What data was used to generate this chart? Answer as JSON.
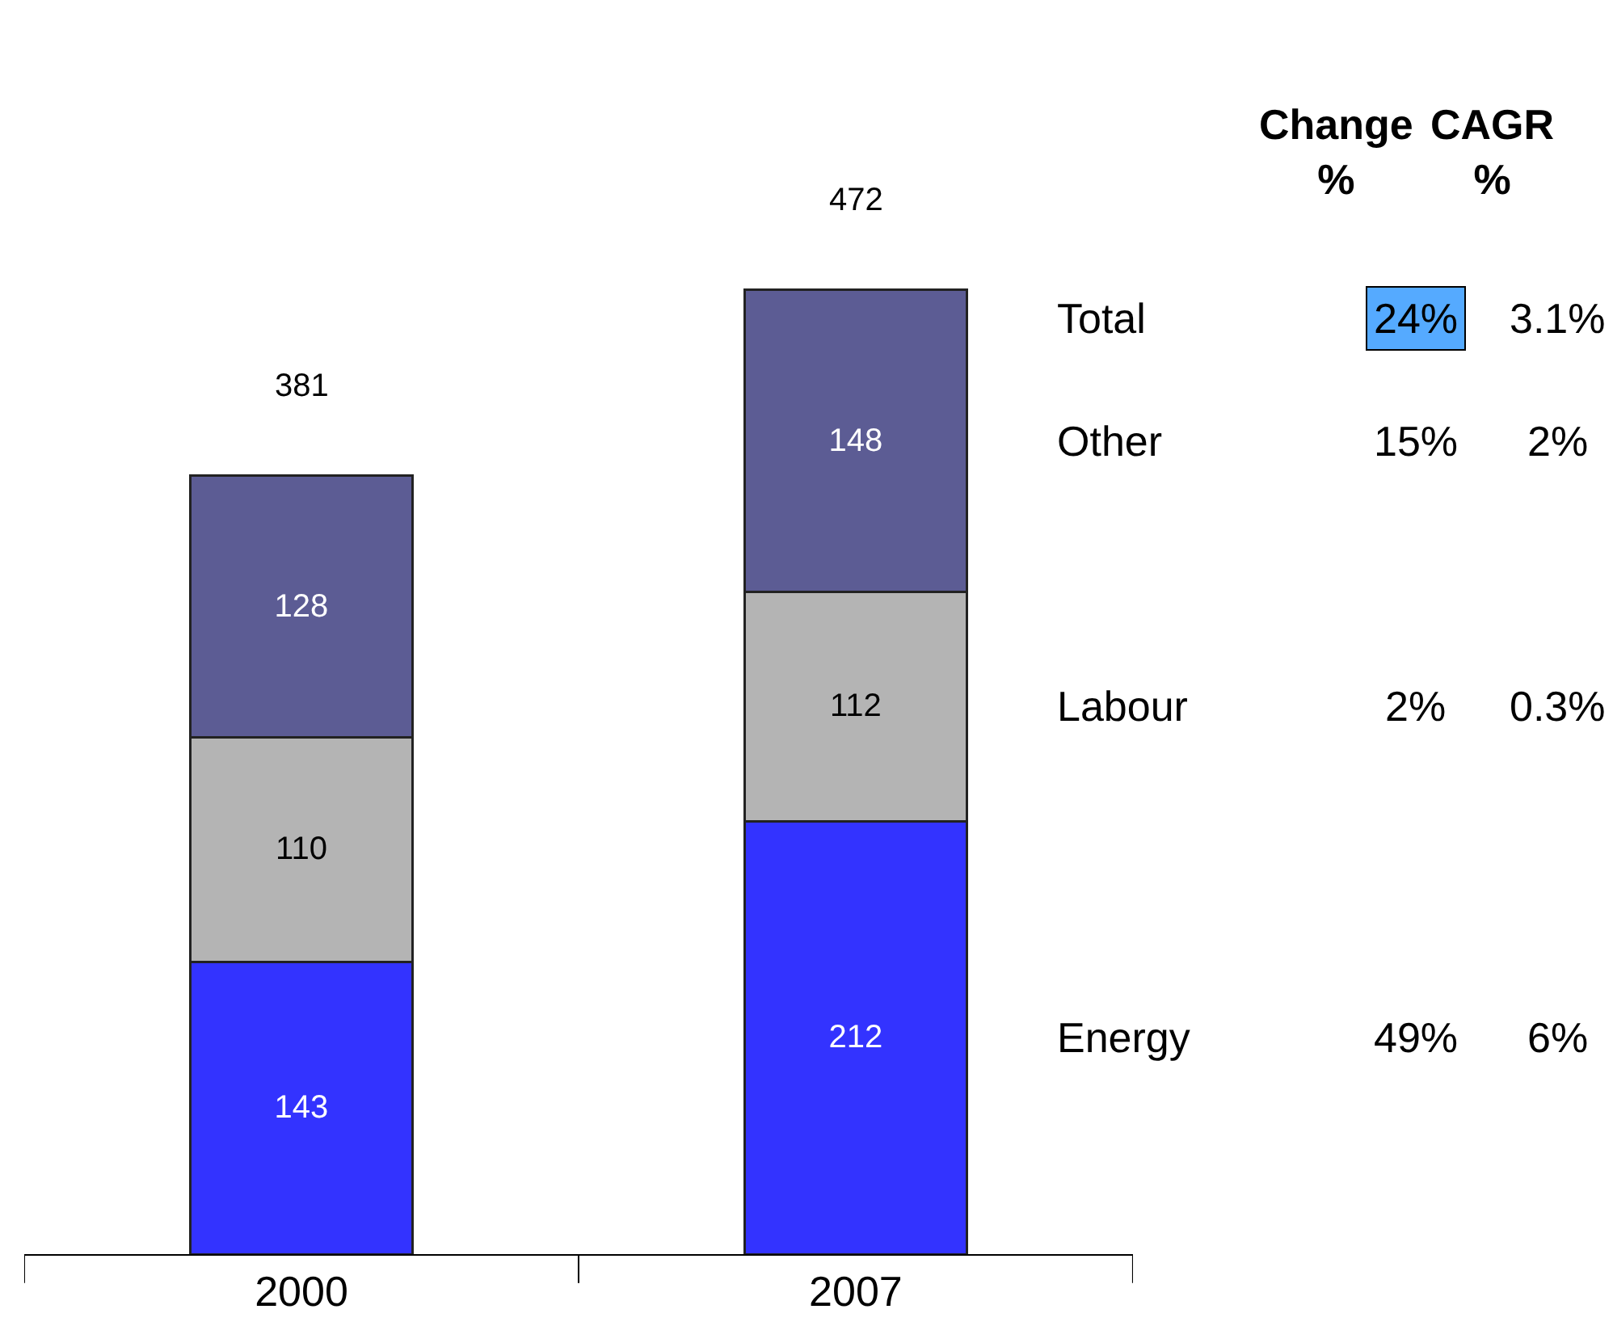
{
  "chart_data": {
    "type": "bar",
    "stacked": true,
    "categories": [
      "2000",
      "2007"
    ],
    "series": [
      {
        "name": "Energy",
        "color": "#3333ff",
        "values": [
          143,
          212
        ]
      },
      {
        "name": "Labour",
        "color": "#b4b4b4",
        "values": [
          110,
          112
        ]
      },
      {
        "name": "Other",
        "color": "#5c5c94",
        "values": [
          128,
          148
        ]
      }
    ],
    "data_labels": true,
    "totals": [
      "381",
      "472"
    ],
    "legend": false,
    "annotations": [
      "Change\n%",
      "CAGR\n%",
      "Total",
      "24%",
      "3.1%",
      "15%",
      "2%",
      "2%",
      "0.3%",
      "49%",
      "6%"
    ]
  }
}
